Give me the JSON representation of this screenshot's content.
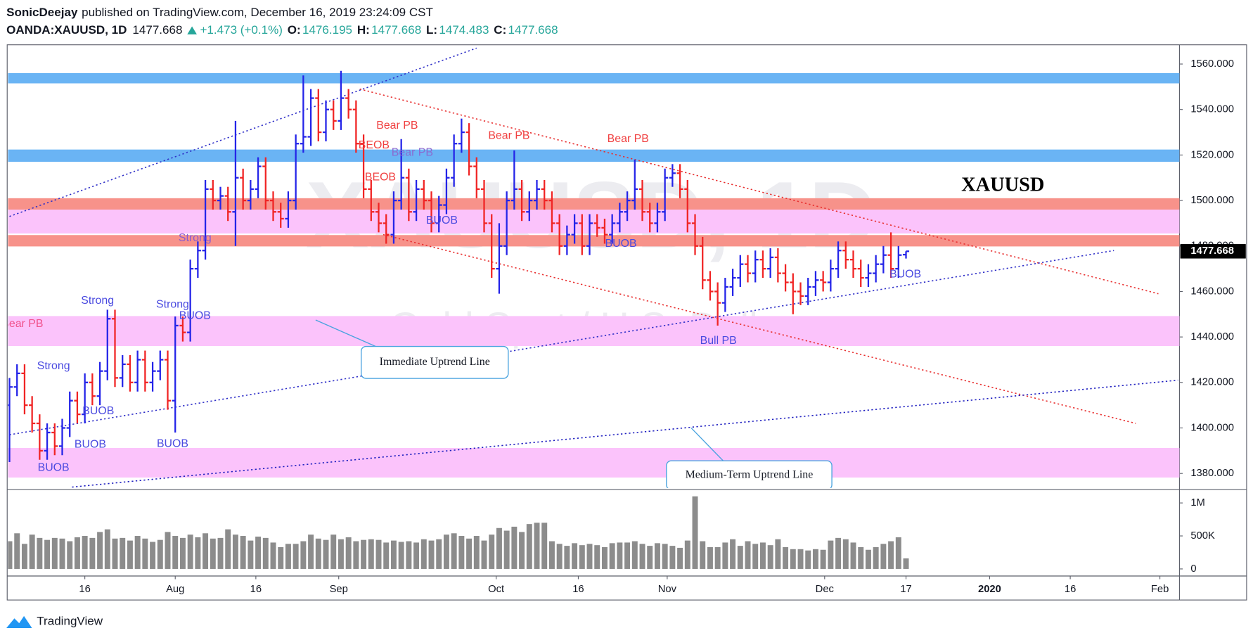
{
  "header": {
    "author": "SonicDeejay",
    "published": "published on TradingView.com, December 16, 2019 23:24:09 CST",
    "symbol": "OANDA:XAUUSD, 1D",
    "change": "+1.473 (+0.1%)",
    "o": "O:",
    "h": "H:",
    "l": "L:",
    "c": "C:"
  },
  "footer": {
    "brand": "TradingView"
  },
  "chart_data": [
    {
      "type": "ohlc",
      "title": "XAUUSD",
      "watermark_symbol": "XAUUSD, 1D",
      "watermark_name": "Gold Spot / U.S. Dollar",
      "up_color": "#2424e8",
      "down_color": "#f02424",
      "open": [
        1410,
        1418,
        1424,
        1410,
        1402,
        1390,
        1398,
        1392,
        1400,
        1412,
        1406,
        1420,
        1414,
        1425,
        1448,
        1422,
        1428,
        1420,
        1430,
        1420,
        1425,
        1430,
        1412,
        1445,
        1442,
        1470,
        1478,
        1505,
        1500,
        1502,
        1495,
        1510,
        1500,
        1505,
        1515,
        1500,
        1495,
        1492,
        1500,
        1525,
        1528,
        1545,
        1530,
        1540,
        1535,
        1545,
        1540,
        1525,
        1505,
        1495,
        1490,
        1485,
        1500,
        1510,
        1495,
        1505,
        1500,
        1490,
        1498,
        1510,
        1525,
        1530,
        1515,
        1505,
        1490,
        1470,
        1480,
        1500,
        1505,
        1495,
        1500,
        1505,
        1500,
        1490,
        1480,
        1485,
        1490,
        1480,
        1490,
        1488,
        1485,
        1490,
        1495,
        1500,
        1505,
        1495,
        1490,
        1495,
        1510,
        1512,
        1505,
        1490,
        1480,
        1465,
        1460,
        1455,
        1462,
        1466,
        1472,
        1468,
        1474,
        1470,
        1475,
        1468,
        1464,
        1460,
        1458,
        1462,
        1465,
        1464,
        1470,
        1478,
        1474,
        1470,
        1466,
        1468,
        1472,
        1476,
        1470,
        1476.195
      ],
      "high": [
        1422,
        1428,
        1428,
        1414,
        1406,
        1402,
        1402,
        1404,
        1416,
        1416,
        1424,
        1424,
        1429,
        1452,
        1452,
        1432,
        1432,
        1434,
        1434,
        1429,
        1434,
        1434,
        1449,
        1449,
        1474,
        1482,
        1509,
        1509,
        1506,
        1506,
        1535,
        1514,
        1509,
        1519,
        1519,
        1504,
        1499,
        1504,
        1529,
        1555,
        1549,
        1549,
        1544,
        1544,
        1557,
        1549,
        1544,
        1529,
        1509,
        1499,
        1494,
        1504,
        1527,
        1514,
        1509,
        1509,
        1504,
        1502,
        1514,
        1529,
        1536,
        1534,
        1519,
        1509,
        1494,
        1490,
        1504,
        1522,
        1509,
        1504,
        1509,
        1509,
        1504,
        1494,
        1489,
        1494,
        1494,
        1494,
        1494,
        1492,
        1494,
        1499,
        1504,
        1518,
        1509,
        1499,
        1499,
        1514,
        1516,
        1516,
        1509,
        1494,
        1484,
        1469,
        1464,
        1466,
        1470,
        1476,
        1476,
        1478,
        1478,
        1479,
        1479,
        1472,
        1468,
        1464,
        1466,
        1469,
        1469,
        1474,
        1482,
        1482,
        1478,
        1474,
        1472,
        1476,
        1480,
        1486,
        1480,
        1477.668
      ],
      "low": [
        1385,
        1414,
        1406,
        1398,
        1386,
        1386,
        1388,
        1388,
        1396,
        1402,
        1402,
        1410,
        1410,
        1421,
        1418,
        1418,
        1416,
        1416,
        1416,
        1416,
        1421,
        1408,
        1398,
        1438,
        1438,
        1466,
        1474,
        1496,
        1496,
        1491,
        1480,
        1496,
        1496,
        1501,
        1496,
        1491,
        1488,
        1488,
        1496,
        1521,
        1524,
        1526,
        1526,
        1531,
        1531,
        1536,
        1521,
        1501,
        1491,
        1486,
        1481,
        1481,
        1496,
        1491,
        1491,
        1496,
        1486,
        1486,
        1494,
        1506,
        1521,
        1511,
        1501,
        1486,
        1466,
        1459,
        1476,
        1496,
        1491,
        1491,
        1496,
        1496,
        1486,
        1476,
        1476,
        1481,
        1476,
        1476,
        1484,
        1481,
        1481,
        1486,
        1491,
        1496,
        1491,
        1486,
        1486,
        1491,
        1506,
        1501,
        1486,
        1476,
        1461,
        1456,
        1445,
        1451,
        1458,
        1462,
        1464,
        1464,
        1466,
        1466,
        1464,
        1460,
        1450,
        1454,
        1454,
        1458,
        1460,
        1460,
        1466,
        1470,
        1466,
        1462,
        1462,
        1464,
        1468,
        1466,
        1466,
        1474.483
      ],
      "close": [
        1418,
        1424,
        1410,
        1402,
        1390,
        1398,
        1392,
        1400,
        1412,
        1406,
        1420,
        1414,
        1425,
        1448,
        1422,
        1428,
        1420,
        1430,
        1420,
        1425,
        1430,
        1412,
        1445,
        1442,
        1470,
        1478,
        1505,
        1500,
        1502,
        1495,
        1510,
        1500,
        1505,
        1515,
        1500,
        1495,
        1492,
        1500,
        1525,
        1528,
        1545,
        1530,
        1540,
        1535,
        1545,
        1540,
        1525,
        1505,
        1495,
        1490,
        1485,
        1500,
        1510,
        1495,
        1505,
        1500,
        1490,
        1498,
        1510,
        1525,
        1530,
        1515,
        1505,
        1490,
        1470,
        1480,
        1500,
        1505,
        1495,
        1500,
        1505,
        1500,
        1490,
        1480,
        1485,
        1490,
        1480,
        1490,
        1488,
        1485,
        1490,
        1495,
        1500,
        1505,
        1495,
        1490,
        1495,
        1510,
        1512,
        1505,
        1490,
        1480,
        1465,
        1460,
        1455,
        1462,
        1466,
        1472,
        1468,
        1474,
        1470,
        1475,
        1468,
        1464,
        1460,
        1458,
        1462,
        1465,
        1464,
        1470,
        1478,
        1474,
        1470,
        1466,
        1468,
        1472,
        1476,
        1470,
        1476,
        1477.668
      ],
      "xlim": [
        -0.2,
        155.3
      ],
      "xticks": [
        {
          "value": 10,
          "label": "16"
        },
        {
          "value": 22,
          "label": "Aug"
        },
        {
          "value": 32.7,
          "label": "16"
        },
        {
          "value": 43.7,
          "label": "Sep"
        },
        {
          "value": 64.6,
          "label": "Oct"
        },
        {
          "value": 75.5,
          "label": "16"
        },
        {
          "value": 87.3,
          "label": "Nov"
        },
        {
          "value": 108.2,
          "label": "Dec"
        },
        {
          "value": 119,
          "label": "17"
        },
        {
          "value": 130.1,
          "label": "2020"
        },
        {
          "value": 140.8,
          "label": "16"
        },
        {
          "value": 152.7,
          "label": "Feb"
        }
      ],
      "ylim": [
        1373.6,
        1568.1
      ],
      "yticks": [
        {
          "value": 1380,
          "label": "1380.000"
        },
        {
          "value": 1400,
          "label": "1400.000"
        },
        {
          "value": 1420,
          "label": "1420.000"
        },
        {
          "value": 1440,
          "label": "1440.000"
        },
        {
          "value": 1460,
          "label": "1460.000"
        },
        {
          "value": 1480,
          "label": "1480.000"
        },
        {
          "value": 1500,
          "label": "1500.000"
        },
        {
          "value": 1520,
          "label": "1520.000"
        },
        {
          "value": 1540,
          "label": "1540.000"
        },
        {
          "value": 1560,
          "label": "1560.000"
        }
      ],
      "grid": false,
      "zones": [
        {
          "from": 1551.5,
          "to": 1556,
          "color": "#6ab4f4"
        },
        {
          "from": 1517,
          "to": 1522.4,
          "color": "#6ab4f4"
        },
        {
          "from": 1485.5,
          "to": 1496,
          "color": "#fbc3fb"
        },
        {
          "from": 1496,
          "to": 1501,
          "color": "#f7928a"
        },
        {
          "from": 1479.8,
          "to": 1484.8,
          "color": "#f7928a"
        },
        {
          "from": 1436,
          "to": 1449.2,
          "color": "#fbc3fb"
        },
        {
          "from": 1378.2,
          "to": 1391.2,
          "color": "#fbc3fb"
        }
      ],
      "lines": [
        {
          "x": [
            0,
            62
          ],
          "y": [
            1493,
            1567
          ],
          "color": "#3030c8"
        },
        {
          "x": [
            46.5,
            152.5
          ],
          "y": [
            1549,
            1459
          ],
          "color": "#e83030"
        },
        {
          "x": [
            49.6,
            149.5
          ],
          "y": [
            1485,
            1402
          ],
          "color": "#e83030"
        },
        {
          "x": [
            0,
            146.6
          ],
          "y": [
            1397,
            1478
          ],
          "color": "#3030c8"
        },
        {
          "x": [
            8.3,
            155.1
          ],
          "y": [
            1374,
            1421
          ],
          "color": "#2020c0"
        }
      ],
      "annotations": [
        {
          "text": "Bear PB",
          "color": "#f0508a"
        },
        {
          "text": "Strong",
          "color": "#4a4ae0"
        },
        {
          "text": "Strong",
          "color": "#4a4ae0"
        },
        {
          "text": "Strong",
          "color": "#4a4ae0"
        },
        {
          "text": "Strong",
          "color": "#8a5ad0"
        },
        {
          "text": "BUOB",
          "color": "#4a4ae0"
        },
        {
          "text": "BUOB",
          "color": "#4a4ae0"
        },
        {
          "text": "BUOB",
          "color": "#4a4ae0"
        },
        {
          "text": "BUOB",
          "color": "#4a4ae0"
        },
        {
          "text": "BUOB",
          "color": "#4a4ae0"
        },
        {
          "text": "BUOB",
          "color": "#4a4ae0"
        },
        {
          "text": "BUOB",
          "color": "#4a4ae0"
        },
        {
          "text": "BUOB",
          "color": "#4a4ae0"
        },
        {
          "text": "Bull PB",
          "color": "#4a4ae0"
        },
        {
          "text": "Bear PB",
          "color": "#f04040"
        },
        {
          "text": "Bear PB",
          "color": "#8a6ad0"
        },
        {
          "text": "BEOB",
          "color": "#f04040"
        },
        {
          "text": "BEOB",
          "color": "#f04040"
        },
        {
          "text": "Bear PB",
          "color": "#f04040"
        },
        {
          "text": "Bear PB",
          "color": "#f04040"
        }
      ],
      "callouts": [
        "Immediate Uptrend Line",
        "Medium-Term Uptrend Line"
      ]
    },
    {
      "type": "bar",
      "color": "#8c8c8c",
      "values": [
        420000,
        540000,
        380000,
        520000,
        470000,
        440000,
        470000,
        460000,
        420000,
        480000,
        500000,
        470000,
        560000,
        600000,
        460000,
        470000,
        430000,
        500000,
        460000,
        410000,
        440000,
        560000,
        500000,
        470000,
        520000,
        480000,
        540000,
        460000,
        470000,
        600000,
        520000,
        500000,
        430000,
        490000,
        470000,
        400000,
        330000,
        380000,
        380000,
        420000,
        520000,
        460000,
        440000,
        520000,
        450000,
        480000,
        420000,
        440000,
        450000,
        440000,
        400000,
        430000,
        410000,
        420000,
        400000,
        450000,
        430000,
        450000,
        520000,
        540000,
        500000,
        460000,
        500000,
        430000,
        520000,
        620000,
        580000,
        640000,
        560000,
        680000,
        700000,
        700000,
        420000,
        380000,
        350000,
        390000,
        360000,
        380000,
        360000,
        330000,
        390000,
        400000,
        400000,
        420000,
        380000,
        350000,
        390000,
        380000,
        350000,
        320000,
        430000,
        1100000,
        420000,
        330000,
        330000,
        400000,
        450000,
        350000,
        420000,
        380000,
        400000,
        360000,
        450000,
        330000,
        300000,
        300000,
        280000,
        300000,
        290000,
        430000,
        470000,
        450000,
        400000,
        330000,
        290000,
        330000,
        380000,
        420000,
        480000,
        160000
      ],
      "ylim": [
        -95000,
        1190000
      ],
      "yticks": [
        {
          "value": 0,
          "label": "0"
        },
        {
          "value": 500000,
          "label": "500K"
        },
        {
          "value": 1000000,
          "label": "1M"
        }
      ]
    }
  ]
}
